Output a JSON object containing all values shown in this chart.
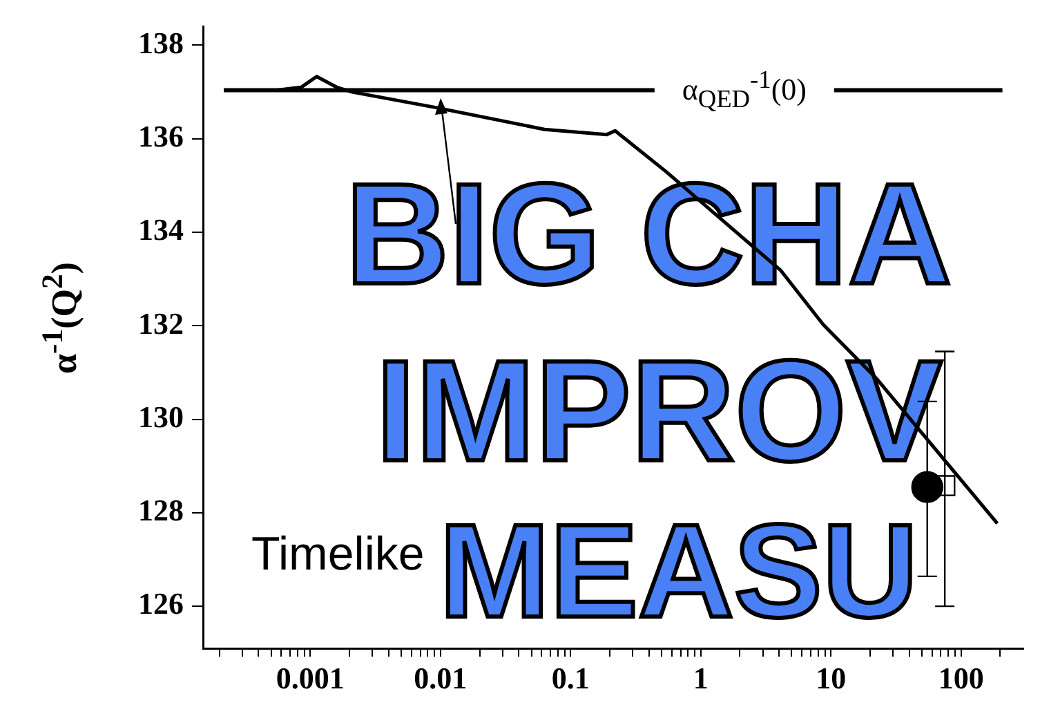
{
  "chart_data": {
    "type": "line",
    "ylabel": "α$^{-1}$(Q$^{2}$)",
    "log": "x",
    "grid": false,
    "legend": false,
    "xlim": [
      0.00015,
      300
    ],
    "ylim": [
      125.1,
      138.4
    ],
    "xticks": [
      {
        "value": 0.0002,
        "label": null
      },
      {
        "value": 0.0003,
        "label": null
      },
      {
        "value": 0.0004,
        "label": null
      },
      {
        "value": 0.0005,
        "label": null
      },
      {
        "value": 0.0006,
        "label": null
      },
      {
        "value": 0.0007,
        "label": null
      },
      {
        "value": 0.0008,
        "label": null
      },
      {
        "value": 0.0009,
        "label": null
      },
      0.001,
      {
        "value": 0.002,
        "label": null
      },
      {
        "value": 0.003,
        "label": null
      },
      {
        "value": 0.004,
        "label": null
      },
      {
        "value": 0.005,
        "label": null
      },
      {
        "value": 0.006,
        "label": null
      },
      {
        "value": 0.007,
        "label": null
      },
      {
        "value": 0.008,
        "label": null
      },
      {
        "value": 0.009,
        "label": null
      },
      0.01,
      {
        "value": 0.02,
        "label": null
      },
      {
        "value": 0.03,
        "label": null
      },
      {
        "value": 0.04,
        "label": null
      },
      {
        "value": 0.05,
        "label": null
      },
      {
        "value": 0.06,
        "label": null
      },
      {
        "value": 0.07,
        "label": null
      },
      {
        "value": 0.08,
        "label": null
      },
      {
        "value": 0.09,
        "label": null
      },
      0.1,
      {
        "value": 0.2,
        "label": null
      },
      {
        "value": 0.3,
        "label": null
      },
      {
        "value": 0.4,
        "label": null
      },
      {
        "value": 0.5,
        "label": null
      },
      {
        "value": 0.6,
        "label": null
      },
      {
        "value": 0.7,
        "label": null
      },
      {
        "value": 0.8,
        "label": null
      },
      {
        "value": 0.9,
        "label": null
      },
      1,
      {
        "value": 2,
        "label": null
      },
      {
        "value": 3,
        "label": null
      },
      {
        "value": 4,
        "label": null
      },
      {
        "value": 5,
        "label": null
      },
      {
        "value": 6,
        "label": null
      },
      {
        "value": 7,
        "label": null
      },
      {
        "value": 8,
        "label": null
      },
      {
        "value": 9,
        "label": null
      },
      10,
      {
        "value": 20,
        "label": null
      },
      {
        "value": 30,
        "label": null
      },
      {
        "value": 40,
        "label": null
      },
      {
        "value": 50,
        "label": null
      },
      {
        "value": 60,
        "label": null
      },
      {
        "value": 70,
        "label": null
      },
      {
        "value": 80,
        "label": null
      },
      {
        "value": 90,
        "label": null
      },
      100,
      {
        "value": 200,
        "label": null
      }
    ],
    "yticks": [
      126,
      128,
      130,
      132,
      134,
      136,
      138
    ],
    "ref_lines": [
      {
        "axis": "y",
        "value": 137.04,
        "label": "α$_{QED}$$^{-1}$(0)",
        "color": "#000000"
      }
    ],
    "annotations": [
      "Timelike",
      "BIG CHA",
      "IMPROV",
      "MEASU"
    ],
    "series": [
      {
        "marker": "none",
        "color": "#000000",
        "x": [
          0.00055,
          0.00085,
          0.00112,
          0.0016,
          0.0021,
          0.0091,
          0.063,
          0.19,
          0.22,
          0.54,
          1.77,
          4.1,
          8.7,
          22.4,
          190
        ],
        "values": [
          137.04,
          137.1,
          137.33,
          137.1,
          137.0,
          136.67,
          136.2,
          136.09,
          136.17,
          135.3,
          134.06,
          133.19,
          132.03,
          130.87,
          127.77
        ]
      },
      {
        "type": "scatter",
        "marker": "circle",
        "color": "#000000",
        "x": [
          55
        ],
        "values": [
          128.55
        ],
        "errors": [
          [
            126.64,
            130.38
          ]
        ]
      },
      {
        "type": "scatter",
        "marker": "square",
        "color": "#000000",
        "x": [
          75
        ],
        "values": [
          128.58
        ],
        "errors": [
          [
            126.0,
            131.45
          ]
        ]
      }
    ]
  }
}
